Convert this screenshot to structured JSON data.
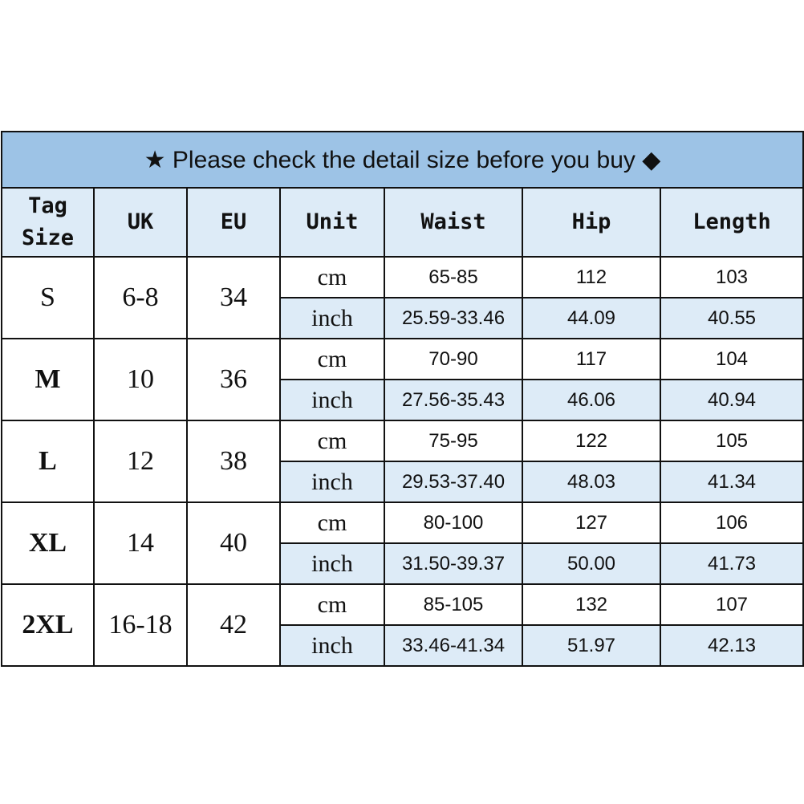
{
  "title": "★ Please check the detail size before you buy ◆",
  "colors": {
    "title_bg": "#9dc3e6",
    "header_bg": "#ddebf7",
    "inch_row_bg": "#ddebf7"
  },
  "headers": [
    "Tag Size",
    "UK",
    "EU",
    "Unit",
    "Waist",
    "Hip",
    "Length"
  ],
  "rows": [
    {
      "tag": "S",
      "uk": "6-8",
      "eu": "34",
      "cm": {
        "unit": "cm",
        "waist": "65-85",
        "hip": "112",
        "length": "103"
      },
      "inch": {
        "unit": "inch",
        "waist": "25.59-33.46",
        "hip": "44.09",
        "length": "40.55"
      }
    },
    {
      "tag": "M",
      "uk": "10",
      "eu": "36",
      "cm": {
        "unit": "cm",
        "waist": "70-90",
        "hip": "117",
        "length": "104"
      },
      "inch": {
        "unit": "inch",
        "waist": "27.56-35.43",
        "hip": "46.06",
        "length": "40.94"
      }
    },
    {
      "tag": "L",
      "uk": "12",
      "eu": "38",
      "cm": {
        "unit": "cm",
        "waist": "75-95",
        "hip": "122",
        "length": "105"
      },
      "inch": {
        "unit": "inch",
        "waist": "29.53-37.40",
        "hip": "48.03",
        "length": "41.34"
      }
    },
    {
      "tag": "XL",
      "uk": "14",
      "eu": "40",
      "cm": {
        "unit": "cm",
        "waist": "80-100",
        "hip": "127",
        "length": "106"
      },
      "inch": {
        "unit": "inch",
        "waist": "31.50-39.37",
        "hip": "50.00",
        "length": "41.73"
      }
    },
    {
      "tag": "2XL",
      "uk": "16-18",
      "eu": "42",
      "cm": {
        "unit": "cm",
        "waist": "85-105",
        "hip": "132",
        "length": "107"
      },
      "inch": {
        "unit": "inch",
        "waist": "33.46-41.34",
        "hip": "51.97",
        "length": "42.13"
      }
    }
  ]
}
